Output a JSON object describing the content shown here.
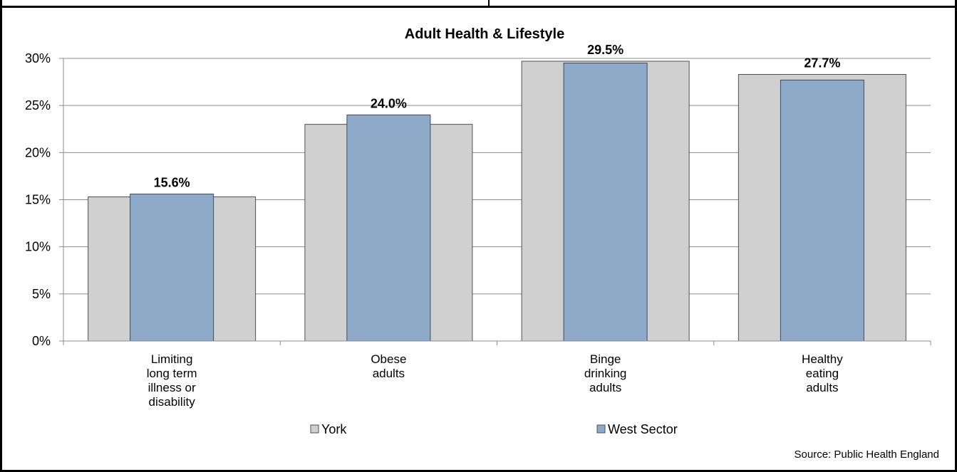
{
  "chart_data": {
    "type": "bar",
    "title": "Adult Health & Lifestyle",
    "categories": [
      [
        "Limiting",
        "long term",
        "illness or",
        "disability"
      ],
      [
        "Obese",
        "adults"
      ],
      [
        "Binge",
        "drinking",
        "adults"
      ],
      [
        "Healthy",
        "eating",
        "adults"
      ]
    ],
    "series": [
      {
        "name": "York",
        "values": [
          15.3,
          23.0,
          29.7,
          28.3
        ],
        "color": "#d0d0d0"
      },
      {
        "name": "West Sector",
        "values": [
          15.6,
          24.0,
          29.5,
          27.7
        ],
        "color": "#8fa9c8"
      }
    ],
    "data_labels": [
      "15.6%",
      "24.0%",
      "29.5%",
      "27.7%"
    ],
    "ylim": [
      0,
      30
    ],
    "yticks": [
      0,
      5,
      10,
      15,
      20,
      25,
      30
    ],
    "ytick_labels": [
      "0%",
      "5%",
      "10%",
      "15%",
      "20%",
      "25%",
      "30%"
    ],
    "grid": true,
    "legend": "bottom",
    "xlabel": "",
    "ylabel": ""
  },
  "source_text": "Source: Public Health England"
}
